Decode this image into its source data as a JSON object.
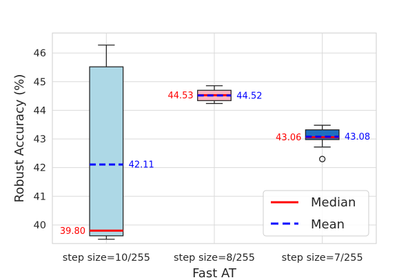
{
  "chart_data": {
    "type": "box",
    "xlabel": "Fast AT",
    "ylabel": "Robust Accuracy (%)",
    "ylim": [
      39.35,
      46.7
    ],
    "yticks": [
      40,
      41,
      42,
      43,
      44,
      45,
      46
    ],
    "grid": true,
    "legend": {
      "placement": "lower-right",
      "entries": [
        {
          "label": "Median",
          "color": "#ff0000",
          "style": "solid"
        },
        {
          "label": "Mean",
          "color": "#0000ff",
          "style": "dashed"
        }
      ]
    },
    "boxes": [
      {
        "category": "step size=10/255",
        "fill": "#add8e6",
        "whisker_low": 39.5,
        "q1": 39.62,
        "median": 39.8,
        "q3": 45.52,
        "whisker_high": 46.28,
        "mean": 42.11,
        "outliers": [],
        "median_label": "39.80",
        "mean_label": "42.11"
      },
      {
        "category": "step size=8/255",
        "fill": "#ffb6c1",
        "whisker_low": 44.24,
        "q1": 44.34,
        "median": 44.53,
        "q3": 44.7,
        "whisker_high": 44.86,
        "mean": 44.52,
        "outliers": [],
        "median_label": "44.53",
        "mean_label": "44.52"
      },
      {
        "category": "step size=7/255",
        "fill": "#1f6fc0",
        "whisker_low": 42.72,
        "q1": 42.98,
        "median": 43.06,
        "q3": 43.32,
        "whisker_high": 43.48,
        "mean": 43.08,
        "outliers": [
          42.3
        ],
        "median_label": "43.06",
        "mean_label": "43.08"
      }
    ],
    "colors": {
      "median": "#ff0000",
      "mean": "#0000ff",
      "grid": "#d9d9d9",
      "box_edge": "#262626"
    }
  }
}
